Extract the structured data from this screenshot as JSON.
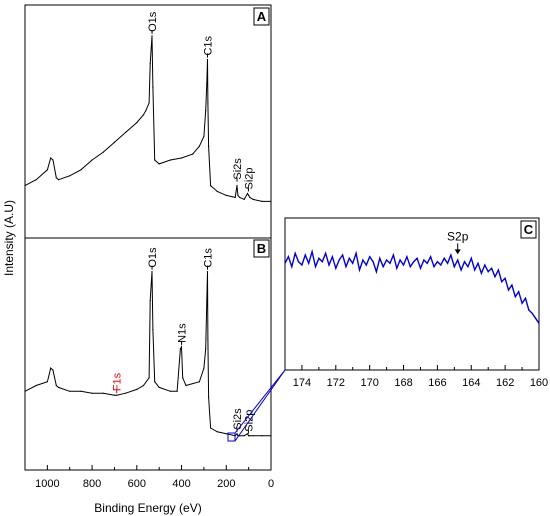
{
  "chart_data": [
    {
      "panel": "A",
      "type": "line",
      "panel_label": "A",
      "xlabel": "",
      "ylabel": "Intensity (A.U)",
      "xlim": [
        1100,
        0
      ],
      "reversed_x": true,
      "x": [
        1100,
        1050,
        1000,
        985,
        975,
        960,
        950,
        900,
        850,
        800,
        750,
        700,
        650,
        600,
        570,
        560,
        545,
        540,
        532,
        528,
        520,
        500,
        450,
        400,
        350,
        320,
        300,
        292,
        287,
        284,
        282,
        279,
        270,
        240,
        200,
        160,
        152,
        148,
        140,
        120,
        105,
        100,
        95,
        80,
        40,
        0
      ],
      "y": [
        20,
        23,
        28,
        34,
        33,
        24,
        23,
        25,
        28,
        33,
        37,
        42,
        47,
        52,
        56,
        58,
        62,
        82,
        96,
        70,
        33,
        31,
        33,
        34,
        36,
        40,
        45,
        58,
        72,
        84,
        62,
        40,
        20,
        17,
        15,
        14,
        20,
        15,
        14,
        13,
        16,
        15,
        14,
        13,
        12,
        12
      ],
      "annotations": [
        {
          "text": "O1s",
          "x": 532,
          "y": 96,
          "color": "#000000"
        },
        {
          "text": "C1s",
          "x": 284,
          "y": 84,
          "color": "#000000"
        },
        {
          "text": "Si2s",
          "x": 152,
          "y": 21,
          "color": "#000000"
        },
        {
          "text": "Si2p",
          "x": 101,
          "y": 16,
          "color": "#000000"
        }
      ]
    },
    {
      "panel": "B",
      "type": "line",
      "panel_label": "B",
      "xlabel": "Binding Energy (eV)",
      "ylabel": "",
      "xlim": [
        1100,
        0
      ],
      "ylim": [
        0,
        100
      ],
      "reversed_x": true,
      "x": [
        1100,
        1050,
        1000,
        985,
        975,
        960,
        950,
        900,
        850,
        800,
        750,
        700,
        690,
        650,
        600,
        570,
        545,
        540,
        532,
        528,
        520,
        500,
        450,
        420,
        405,
        400,
        395,
        380,
        320,
        300,
        292,
        287,
        284,
        282,
        279,
        270,
        240,
        200,
        160,
        152,
        148,
        140,
        120,
        105,
        100,
        95,
        80,
        40,
        0
      ],
      "xticks": [
        1000,
        800,
        600,
        400,
        200,
        0
      ],
      "y": [
        33,
        36,
        38,
        45,
        44,
        36,
        35,
        33,
        33,
        32,
        32,
        31,
        31,
        32,
        34,
        36,
        40,
        80,
        95,
        65,
        38,
        35,
        33,
        33,
        55,
        56,
        40,
        36,
        38,
        45,
        55,
        80,
        95,
        60,
        30,
        14,
        12,
        11,
        10,
        11,
        10,
        10,
        10,
        11,
        10,
        10,
        10,
        10,
        10
      ],
      "annotations": [
        {
          "text": "O1s",
          "x": 532,
          "y": 95,
          "color": "#000000"
        },
        {
          "text": "N1s",
          "x": 400,
          "y": 56,
          "color": "#000000"
        },
        {
          "text": "C1s",
          "x": 284,
          "y": 95,
          "color": "#000000"
        },
        {
          "text": "F1s",
          "x": 690,
          "y": 31,
          "color": "#ff0000"
        },
        {
          "text": "Si2s",
          "x": 152,
          "y": 11,
          "color": "#000000"
        },
        {
          "text": "Si2p",
          "x": 101,
          "y": 10,
          "color": "#000000"
        }
      ]
    },
    {
      "panel": "C",
      "type": "line",
      "panel_label": "C",
      "xlabel": "",
      "ylabel": "",
      "xlim": [
        175,
        160
      ],
      "reversed_x": true,
      "xticks": [
        174,
        172,
        170,
        168,
        166,
        164,
        162,
        160
      ],
      "line_color": "#0000dd",
      "x": [
        175,
        174.8,
        174.6,
        174.4,
        174.2,
        174,
        173.8,
        173.6,
        173.4,
        173.2,
        173,
        172.8,
        172.6,
        172.4,
        172.2,
        172,
        171.8,
        171.6,
        171.4,
        171.2,
        171,
        170.8,
        170.6,
        170.4,
        170.2,
        170,
        169.8,
        169.6,
        169.4,
        169.2,
        169,
        168.8,
        168.6,
        168.4,
        168.2,
        168,
        167.8,
        167.6,
        167.4,
        167.2,
        167,
        166.8,
        166.6,
        166.4,
        166.2,
        166,
        165.8,
        165.6,
        165.4,
        165.2,
        165,
        164.8,
        164.6,
        164.4,
        164.2,
        164,
        163.8,
        163.6,
        163.4,
        163.2,
        163,
        162.8,
        162.6,
        162.4,
        162.2,
        162,
        161.8,
        161.6,
        161.4,
        161.2,
        161,
        160.8,
        160.6,
        160.4,
        160.2,
        160
      ],
      "y": [
        66,
        70,
        64,
        72,
        67,
        65,
        71,
        66,
        73,
        64,
        69,
        67,
        72,
        65,
        70,
        63,
        68,
        71,
        64,
        69,
        66,
        72,
        62,
        68,
        65,
        70,
        67,
        61,
        69,
        64,
        68,
        66,
        71,
        63,
        68,
        65,
        70,
        64,
        67,
        69,
        63,
        68,
        66,
        70,
        64,
        67,
        65,
        69,
        66,
        71,
        64,
        68,
        62,
        67,
        64,
        69,
        62,
        66,
        60,
        65,
        61,
        63,
        58,
        62,
        55,
        57,
        50,
        53,
        46,
        49,
        42,
        45,
        38,
        36,
        33,
        30
      ],
      "annotations": [
        {
          "text": "S2p",
          "x": 164.8,
          "y": 75,
          "color": "#000000"
        }
      ]
    }
  ]
}
